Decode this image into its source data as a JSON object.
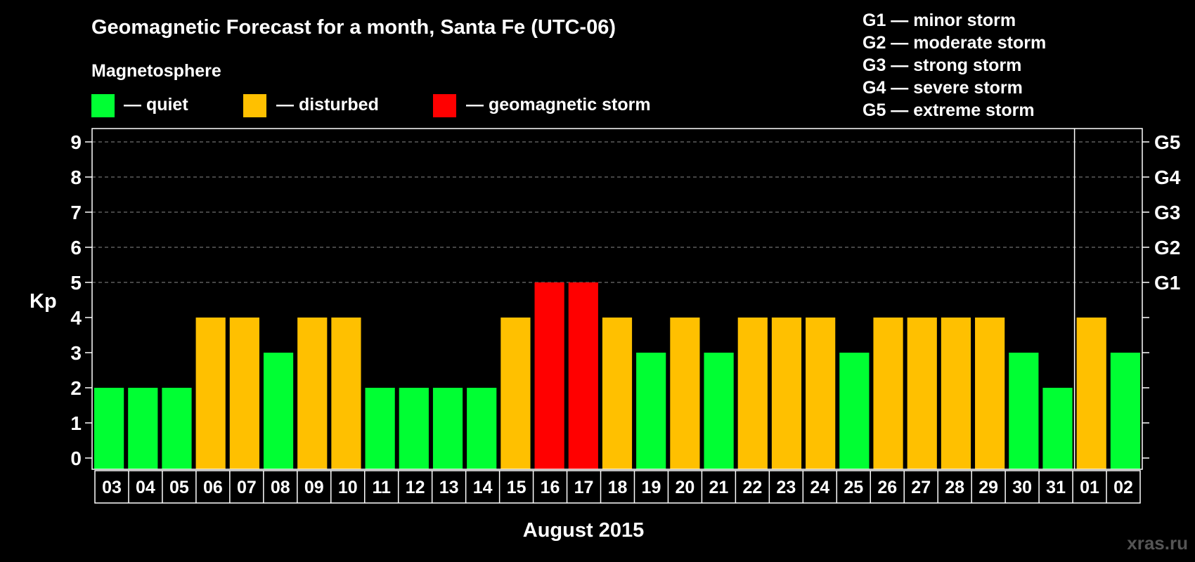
{
  "chart_data": {
    "type": "bar",
    "title": "Geomagnetic Forecast for a month, Santa Fe (UTC-06)",
    "legend": {
      "heading": "Magnetosphere",
      "items": [
        {
          "label": "— quiet",
          "color": "#00ff33"
        },
        {
          "label": "— disturbed",
          "color": "#ffc000"
        },
        {
          "label": "— geomagnetic storm",
          "color": "#ff0000"
        }
      ]
    },
    "storm_scale": [
      "G1 — minor storm",
      "G2 — moderate storm",
      "G3 — strong storm",
      "G4 — severe storm",
      "G5 — extreme storm"
    ],
    "ylabel": "Kp",
    "xlabel": "August 2015",
    "ylim": [
      0,
      9
    ],
    "yticks": [
      "0",
      "1",
      "2",
      "3",
      "4",
      "5",
      "6",
      "7",
      "8",
      "9"
    ],
    "right_ticks": [
      {
        "value": 5,
        "label": "G1"
      },
      {
        "value": 6,
        "label": "G2"
      },
      {
        "value": 7,
        "label": "G3"
      },
      {
        "value": 8,
        "label": "G4"
      },
      {
        "value": 9,
        "label": "G5"
      }
    ],
    "grid": "dashed at 5-9",
    "month_divider_after": "31",
    "categories": [
      "03",
      "04",
      "05",
      "06",
      "07",
      "08",
      "09",
      "10",
      "11",
      "12",
      "13",
      "14",
      "15",
      "16",
      "17",
      "18",
      "19",
      "20",
      "21",
      "22",
      "23",
      "24",
      "25",
      "26",
      "27",
      "28",
      "29",
      "30",
      "31",
      "01",
      "02"
    ],
    "values": [
      2,
      2,
      2,
      4,
      4,
      3,
      4,
      4,
      2,
      2,
      2,
      2,
      4,
      5,
      5,
      4,
      3,
      4,
      3,
      4,
      4,
      4,
      3,
      4,
      4,
      4,
      4,
      3,
      2,
      4,
      3
    ],
    "colors": {
      "2": "#00ff33",
      "3": "#00ff33",
      "4": "#ffc000",
      "5": "#ff0000"
    }
  },
  "watermark": "xras.ru"
}
